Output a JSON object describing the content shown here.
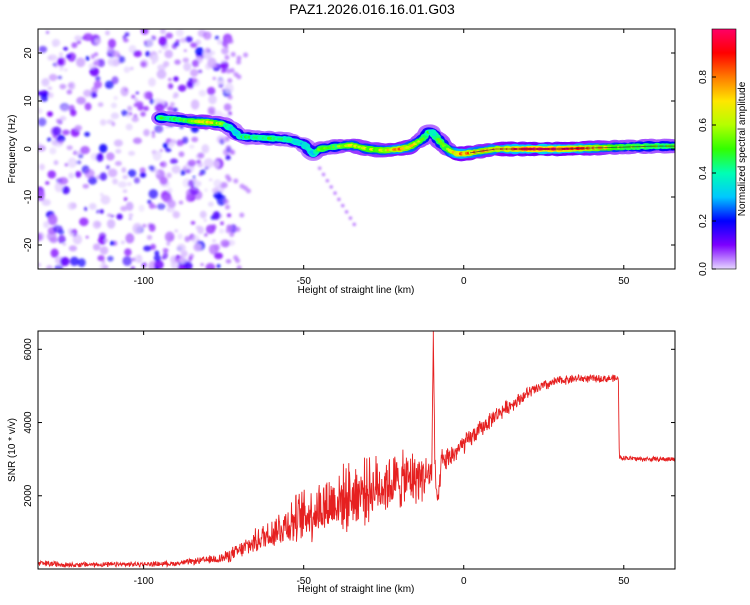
{
  "title": "PAZ1.2026.016.16.01.G03",
  "chart_data": [
    {
      "type": "heatmap",
      "name": "spectrogram",
      "title": "PAZ1.2026.016.16.01.G03",
      "xlabel": "Height of straight line (km)",
      "ylabel": "Frequency (Hz)",
      "xlim": [
        -133,
        66
      ],
      "ylim": [
        -25,
        25
      ],
      "xticks": [
        -100,
        -50,
        0,
        50
      ],
      "xtick_labels": [
        "-100",
        "-50",
        "0",
        "50"
      ],
      "yticks": [
        -20,
        -10,
        0,
        10,
        20
      ],
      "ytick_labels": [
        "-20",
        "-10",
        "0",
        "10",
        "20"
      ],
      "colorbar": {
        "label": "Normalized spectral amplitude",
        "range": [
          0,
          1
        ],
        "ticks": [
          0.0,
          0.2,
          0.4,
          0.6,
          0.8
        ],
        "tick_labels": [
          "0.0",
          "0.2",
          "0.4",
          "0.6",
          "0.8"
        ],
        "stops": [
          "#e6d7ff",
          "#7d00ff",
          "#0000ff",
          "#00c8ff",
          "#00ffb4",
          "#32ff00",
          "#b4ff00",
          "#ffe600",
          "#ff7a00",
          "#ff0000",
          "#ff0066"
        ]
      },
      "noise_region": {
        "x": [
          -133,
          -72
        ],
        "y": [
          -25,
          25
        ],
        "amplitude": [
          0.0,
          0.2
        ]
      },
      "ridge": {
        "x": [
          -95,
          -90,
          -85,
          -80,
          -75,
          -72,
          -70,
          -65,
          -60,
          -55,
          -50,
          -47,
          -45,
          -40,
          -35,
          -30,
          -25,
          -20,
          -17,
          -13,
          -11,
          -10,
          -8,
          -6,
          -4,
          -2,
          0,
          5,
          10,
          20,
          30,
          40,
          50,
          60,
          66
        ],
        "freq": [
          6.5,
          6.2,
          5.8,
          5.6,
          5.2,
          4.0,
          2.6,
          2.4,
          2.2,
          2.0,
          1.0,
          -1.0,
          0.0,
          0.5,
          0.8,
          0.0,
          -0.3,
          0.0,
          0.4,
          2.0,
          3.5,
          3.6,
          2.0,
          0.5,
          -0.5,
          -1.0,
          -1.0,
          -0.5,
          0.0,
          0.0,
          0.0,
          0.2,
          0.4,
          0.6,
          0.6
        ],
        "amplitude": [
          0.45,
          0.45,
          0.55,
          0.7,
          0.5,
          0.35,
          0.4,
          0.45,
          0.45,
          0.4,
          0.35,
          0.35,
          0.55,
          0.5,
          0.65,
          0.6,
          0.65,
          0.8,
          0.7,
          0.55,
          0.45,
          0.4,
          0.5,
          0.55,
          0.6,
          0.85,
          0.85,
          0.7,
          0.75,
          0.95,
          0.95,
          0.75,
          0.55,
          0.5,
          0.5
        ]
      }
    },
    {
      "type": "line",
      "name": "snr",
      "xlabel": "Height of straight line (km)",
      "ylabel": "SNR (10 * v/v)",
      "xlim": [
        -133,
        66
      ],
      "ylim": [
        0,
        6500
      ],
      "xticks": [
        -100,
        -50,
        0,
        50
      ],
      "xtick_labels": [
        "-100",
        "-50",
        "0",
        "50"
      ],
      "yticks": [
        2000,
        4000,
        6000
      ],
      "ytick_labels": [
        "2000",
        "4000",
        "6000"
      ],
      "color": "#e62020",
      "series": [
        {
          "name": "SNR",
          "x": [
            -133,
            -120,
            -110,
            -100,
            -90,
            -80,
            -75,
            -70,
            -65,
            -60,
            -55,
            -50,
            -45,
            -40,
            -35,
            -30,
            -25,
            -20,
            -15,
            -12,
            -10,
            -9.5,
            -9,
            -8,
            -7,
            -5,
            0,
            5,
            10,
            15,
            20,
            25,
            30,
            35,
            40,
            45,
            48.3,
            48.6,
            55,
            66
          ],
          "values": [
            150,
            120,
            120,
            130,
            150,
            250,
            300,
            500,
            750,
            1000,
            1250,
            1450,
            1650,
            1850,
            2000,
            2150,
            2300,
            2400,
            2500,
            2550,
            2600,
            6500,
            2700,
            1700,
            2900,
            3000,
            3400,
            3800,
            4200,
            4500,
            4800,
            5000,
            5150,
            5200,
            5200,
            5200,
            5200,
            3050,
            3000,
            3000
          ],
          "noise_amplitude": [
            100,
            90,
            80,
            80,
            80,
            120,
            180,
            260,
            380,
            520,
            700,
            850,
            950,
            1000,
            1050,
            1000,
            950,
            900,
            850,
            700,
            600,
            0,
            500,
            300,
            420,
            380,
            320,
            280,
            250,
            220,
            200,
            180,
            150,
            140,
            120,
            120,
            110,
            80,
            80,
            80
          ]
        }
      ]
    }
  ]
}
